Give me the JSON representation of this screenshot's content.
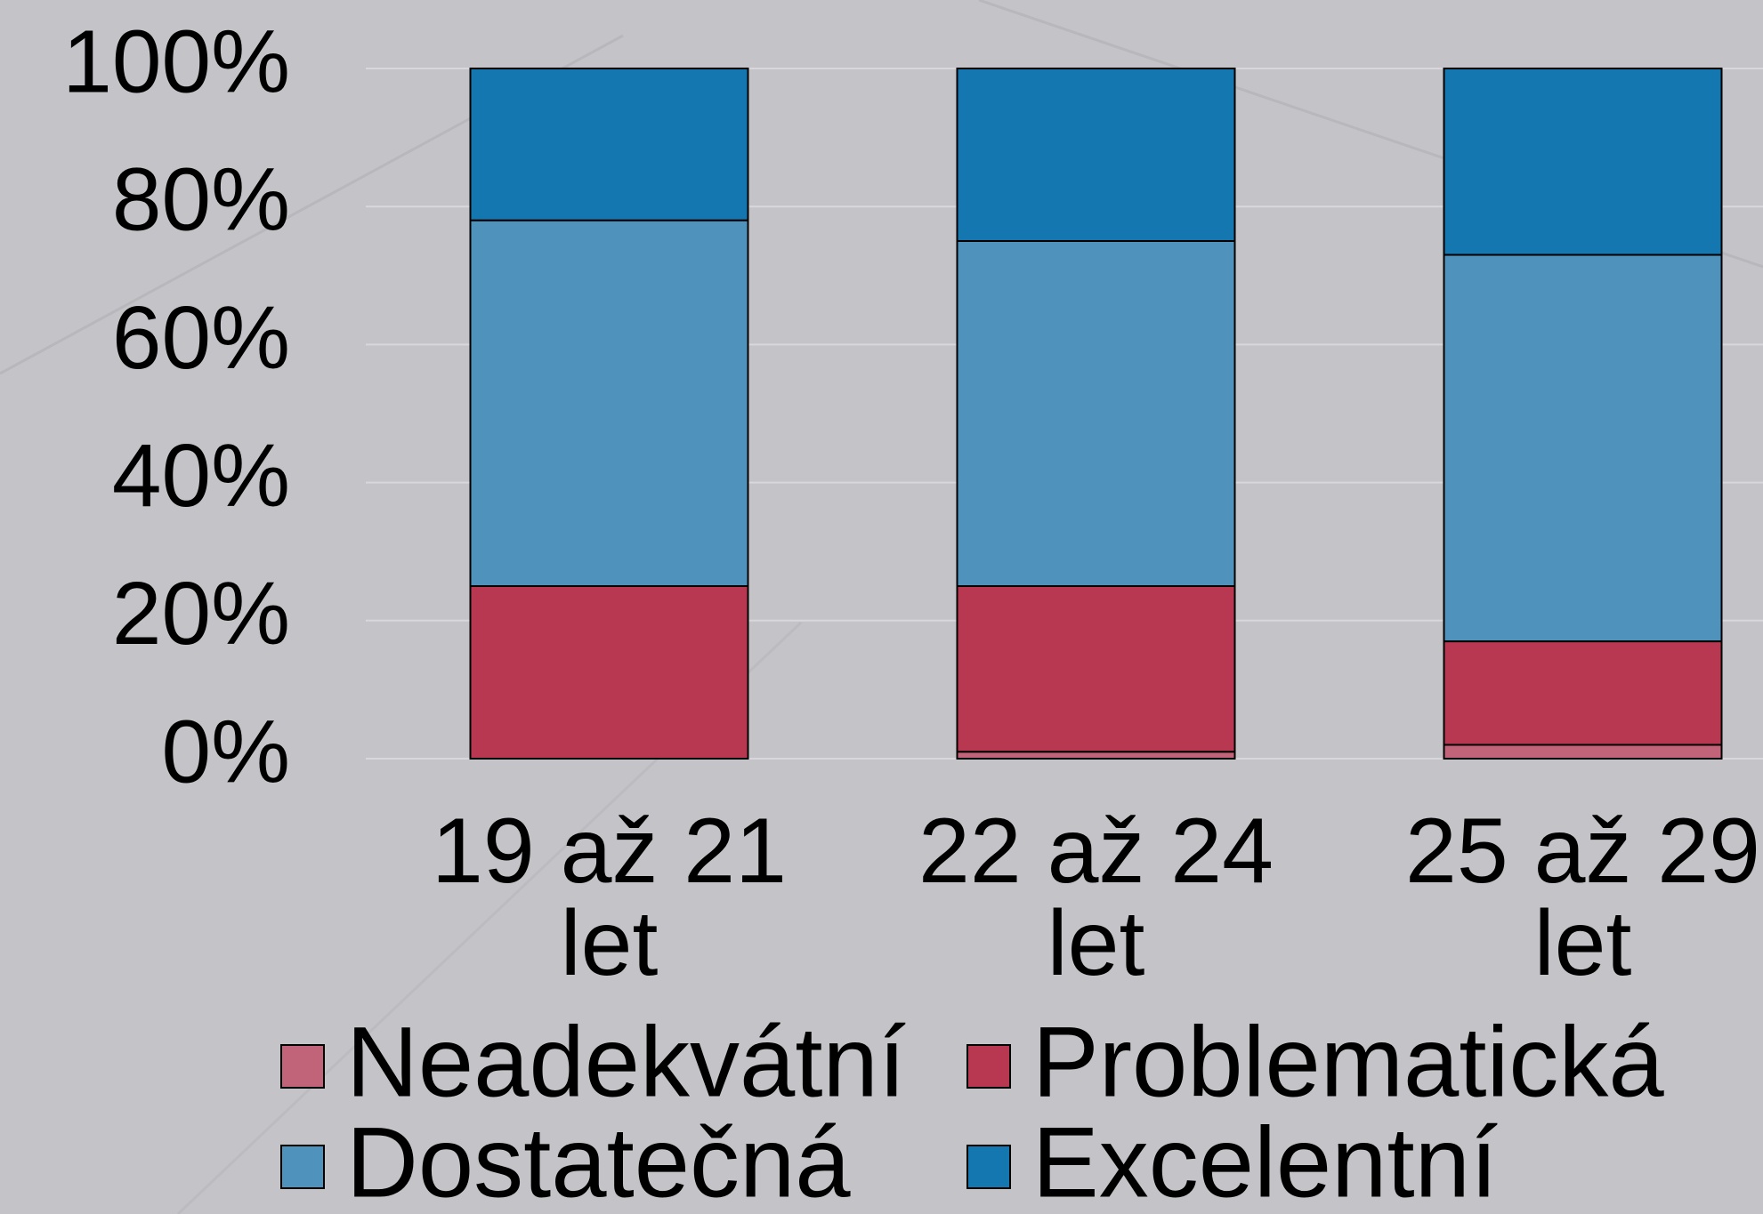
{
  "chart_data": {
    "type": "stacked_bar",
    "categories": [
      "19 až 21 let",
      "22 až 24 let",
      "25 až 29 let"
    ],
    "series": [
      {
        "name": "Neadekvátní",
        "color": "#c26479",
        "values": [
          0,
          1,
          2
        ]
      },
      {
        "name": "Problematická",
        "color": "#b83852",
        "values": [
          25,
          24,
          15
        ]
      },
      {
        "name": "Dostatečná",
        "color": "#4f93bd",
        "values": [
          53,
          50,
          56
        ]
      },
      {
        "name": "Excelentní",
        "color": "#1477b0",
        "values": [
          22,
          25,
          27
        ]
      }
    ],
    "ylim": [
      0,
      100
    ],
    "yticks": [
      {
        "value": 0,
        "label": "0%"
      },
      {
        "value": 20,
        "label": "20%"
      },
      {
        "value": 40,
        "label": "40%"
      },
      {
        "value": 60,
        "label": "60%"
      },
      {
        "value": 80,
        "label": "80%"
      },
      {
        "value": 100,
        "label": "100%"
      }
    ],
    "grid": true
  }
}
